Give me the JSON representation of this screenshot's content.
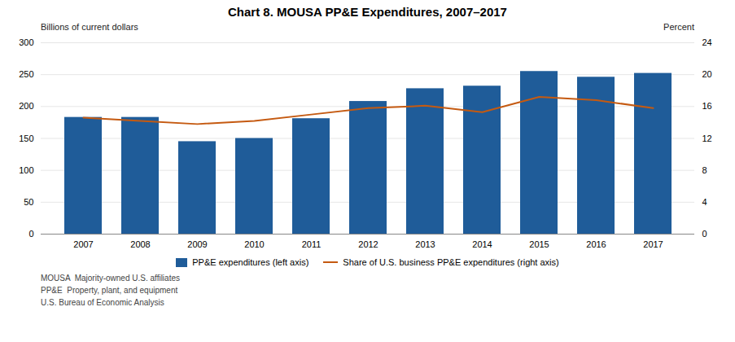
{
  "chart_data": {
    "type": "bar",
    "title": "Chart 8. MOUSA PP&E Expenditures, 2007–2017",
    "categories": [
      "2007",
      "2008",
      "2009",
      "2010",
      "2011",
      "2012",
      "2013",
      "2014",
      "2015",
      "2016",
      "2017"
    ],
    "series": [
      {
        "name": "PP&E expenditures (left axis)",
        "type": "bar",
        "color": "#1F5C99",
        "values": [
          183,
          183,
          145,
          150,
          181,
          208,
          228,
          232,
          255,
          246,
          252
        ]
      },
      {
        "name": "Share of U.S. business PP&E expenditures (right axis)",
        "type": "line",
        "axis": "y2",
        "color": "#C55A11",
        "values": [
          14.6,
          14.2,
          13.8,
          14.2,
          15.0,
          15.8,
          16.1,
          15.3,
          17.2,
          16.8,
          15.8
        ]
      }
    ],
    "ylabel": "Billions of current dollars",
    "y2label": "Percent",
    "ylim": [
      0,
      300
    ],
    "yticks": [
      0,
      50,
      100,
      150,
      200,
      250,
      300
    ],
    "y2lim": [
      0,
      24
    ],
    "y2ticks": [
      0,
      4,
      8,
      12,
      16,
      20,
      24
    ],
    "grid": true,
    "legend": "bottom",
    "annotations": [
      "MOUSA  Majority-owned U.S. affiliates",
      "PP&E  Property, plant, and equipment",
      "U.S. Bureau of Economic Analysis"
    ]
  }
}
